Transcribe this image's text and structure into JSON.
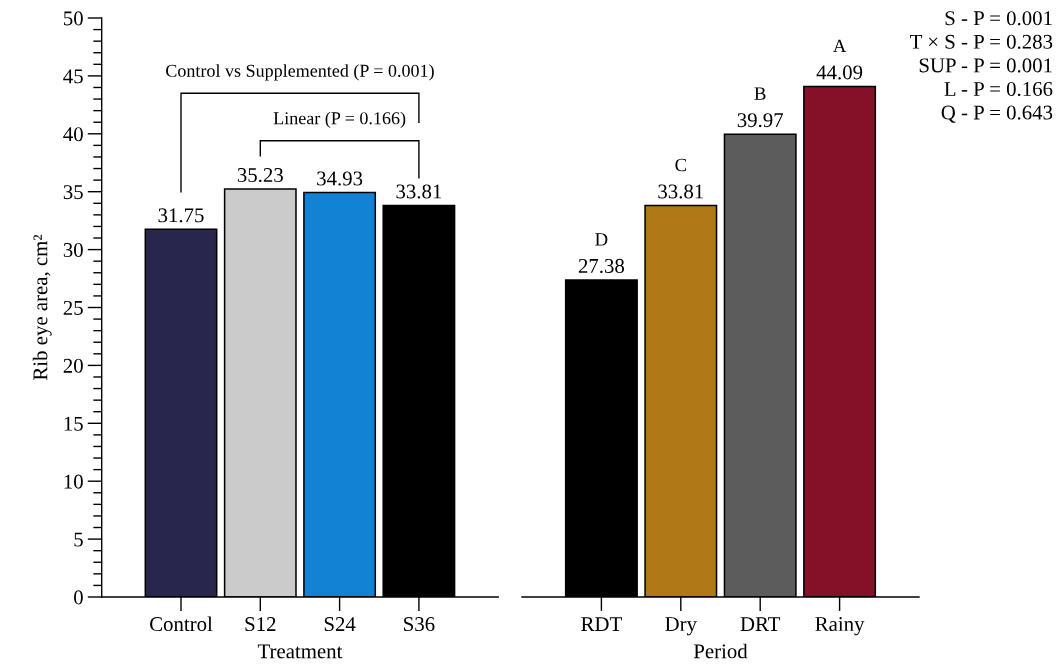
{
  "chart_data": [
    {
      "type": "bar",
      "xlabel": "Treatment",
      "ylabel": "Rib eye area, cm²",
      "categories": [
        "Control",
        "S12",
        "S24",
        "S36"
      ],
      "values": [
        31.75,
        35.23,
        34.93,
        33.81
      ],
      "colors": [
        "#29264d",
        "#cbcbcb",
        "#1283d4",
        "#000000"
      ],
      "ylim": [
        0,
        50
      ],
      "yticks": [
        0,
        5,
        10,
        15,
        20,
        25,
        30,
        35,
        40,
        45,
        50
      ],
      "data_labels": true,
      "annotations": [
        "Control vs Supplemented (P = 0.001)",
        "Linear (P = 0.166)"
      ]
    },
    {
      "type": "bar",
      "xlabel": "Period",
      "categories": [
        "RDT",
        "Dry",
        "DRT",
        "Rainy"
      ],
      "values": [
        27.38,
        33.81,
        39.97,
        44.09
      ],
      "colors": [
        "#000000",
        "#b07916",
        "#5c5c5c",
        "#851128"
      ],
      "ylim": [
        0,
        50
      ],
      "tick_labels": "x",
      "data_labels": true,
      "annotations": [
        {
          "text": "D",
          "x": "RDT",
          "y": 27.38
        },
        {
          "text": "C",
          "x": "Dry",
          "y": 33.81
        },
        {
          "text": "B",
          "x": "DRT",
          "y": 39.97
        },
        {
          "text": "A",
          "x": "Rainy",
          "y": 44.09
        },
        "S - P = 0.001",
        "T × S - P = 0.283",
        "SUP - P = 0.001",
        "L - P = 0.166",
        "Q - P = 0.643"
      ]
    }
  ]
}
